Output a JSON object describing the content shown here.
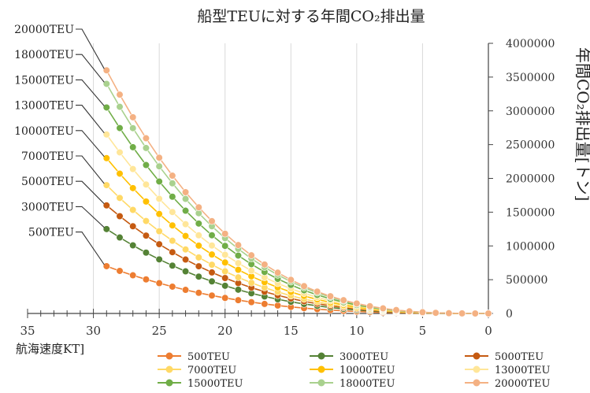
{
  "chart_data": {
    "type": "line",
    "title": "船型TEUに対する年間CO₂排出量",
    "xlabel": "航海速度KT]",
    "ylabel": "年間CO₂排出量[トン]",
    "xlim": [
      35,
      0
    ],
    "ylim": [
      0,
      4000000
    ],
    "x_ticks": [
      "35",
      "30",
      "25",
      "20",
      "15",
      "10",
      "5",
      "0"
    ],
    "y_ticks": [
      "0",
      "500000",
      "1000000",
      "1500000",
      "2000000",
      "2500000",
      "3000000",
      "3500000",
      "4000000"
    ],
    "y_axis_position": "right",
    "grid": "vertical",
    "legend_position": "bottom",
    "x": [
      29,
      28,
      27,
      26,
      25,
      24,
      23,
      22,
      21,
      20,
      19,
      18,
      17,
      16,
      15,
      14,
      13,
      12,
      11,
      10,
      9,
      8,
      7,
      6,
      5,
      4,
      3,
      2,
      1,
      0
    ],
    "series": [
      {
        "name": "500TEU",
        "color": "#ED7D31",
        "at29": 700000,
        "curve": 3
      },
      {
        "name": "3000TEU",
        "color": "#548235",
        "at29": 1250000,
        "curve": 3
      },
      {
        "name": "5000TEU",
        "color": "#C55A11",
        "at29": 1600000,
        "curve": 3
      },
      {
        "name": "7000TEU",
        "color": "#FFD966",
        "at29": 1900000,
        "curve": 3
      },
      {
        "name": "10000TEU",
        "color": "#FFC000",
        "at29": 2300000,
        "curve": 3
      },
      {
        "name": "13000TEU",
        "color": "#FFE699",
        "at29": 2650000,
        "curve": 3
      },
      {
        "name": "15000TEU",
        "color": "#70AD47",
        "at29": 3050000,
        "curve": 3
      },
      {
        "name": "18000TEU",
        "color": "#A9D18E",
        "at29": 3400000,
        "curve": 3
      },
      {
        "name": "20000TEU",
        "color": "#F4B183",
        "at29": 3600000,
        "curve": 3
      }
    ],
    "callouts": [
      "20000TEU",
      "18000TEU",
      "15000TEU",
      "13000TEU",
      "10000TEU",
      "7000TEU",
      "5000TEU",
      "3000TEU",
      "500TEU"
    ]
  }
}
